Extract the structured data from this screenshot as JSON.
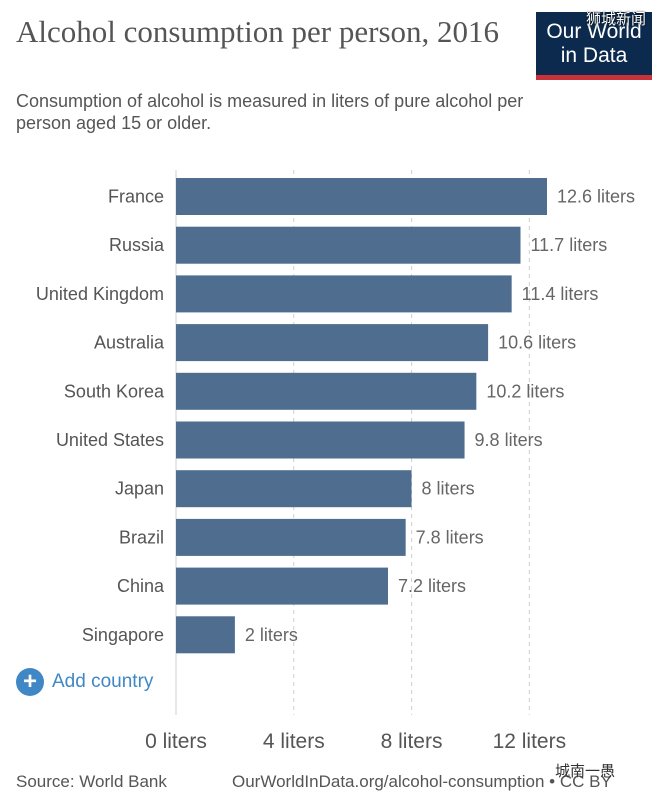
{
  "header": {
    "title": "Alcohol consumption per person, 2016",
    "subtitle": "Consumption of alcohol is measured in liters of pure alcohol per person aged 15 or older.",
    "logo_line1": "Our World",
    "logo_line2": "in Data"
  },
  "controls": {
    "add_country_label": "Add country"
  },
  "footer": {
    "source": "Source: World Bank",
    "url": "OurWorldInData.org/alcohol-consumption • CC BY"
  },
  "watermarks": {
    "top": "狮城新闻",
    "bottom": "城南一愚"
  },
  "colors": {
    "bar": "#4e6d8f",
    "logo_bg": "#0c2a4d",
    "logo_accent": "#c8323b",
    "link": "#3f88c5"
  },
  "chart_data": {
    "type": "bar",
    "orientation": "horizontal",
    "categories": [
      "France",
      "Russia",
      "United Kingdom",
      "Australia",
      "South Korea",
      "United States",
      "Japan",
      "Brazil",
      "China",
      "Singapore"
    ],
    "values": [
      12.6,
      11.7,
      11.4,
      10.6,
      10.2,
      9.8,
      8,
      7.8,
      7.2,
      2
    ],
    "value_labels": [
      "12.6 liters",
      "11.7 liters",
      "11.4 liters",
      "10.6 liters",
      "10.2 liters",
      "9.8 liters",
      "8 liters",
      "7.8 liters",
      "7.2 liters",
      "2 liters"
    ],
    "xlim": [
      0,
      12.6
    ],
    "xticks": [
      0,
      4,
      8,
      12
    ],
    "xtick_labels": [
      "0 liters",
      "4 liters",
      "8 liters",
      "12 liters"
    ],
    "grid": "vertical dashed"
  }
}
